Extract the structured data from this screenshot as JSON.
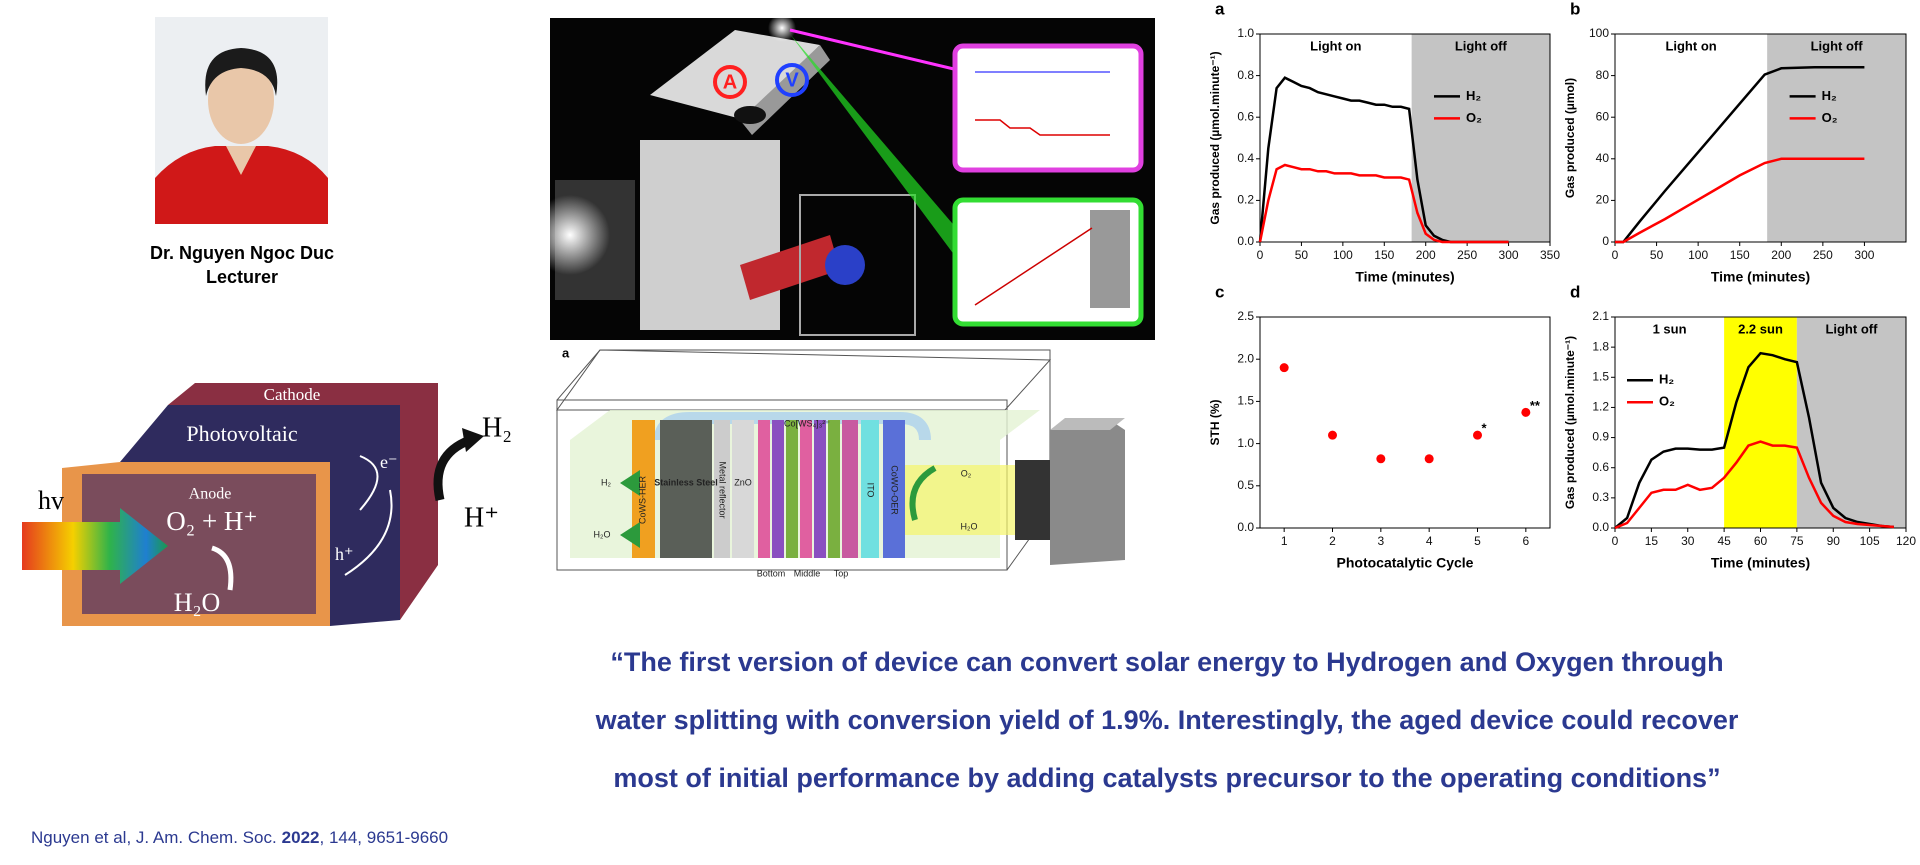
{
  "profile": {
    "name": "Dr. Nguyen Ngoc Duc",
    "role": "Lecturer"
  },
  "cell_diagram": {
    "cathode": "Cathode",
    "photovoltaic": "Photovoltaic",
    "anode": "Anode",
    "anode_products": "O₂ + H⁺",
    "light": "hv",
    "electron": "e⁻",
    "hole": "h⁺",
    "water": "H₂O",
    "hydrogen": "H₂",
    "proton": "H⁺"
  },
  "device_photo": {
    "ammeter": "A",
    "voltmeter": "V"
  },
  "device_schematic": {
    "panel": "a",
    "catalyst": "Co[WS₄]₃²⁻",
    "h2": "H₂",
    "h2o_left": "H₂O",
    "her": "CoWS-HER",
    "steel": "Stainless Steel",
    "reflector": "Metal reflector",
    "zno": "ZnO",
    "ito": "ITO",
    "oer": "CoWO-OER",
    "o2": "O₂",
    "h2o_right": "H₂O",
    "bottom": "Bottom",
    "middle": "Middle",
    "top": "Top"
  },
  "charts": [
    {
      "panel": "a",
      "type": "line",
      "xlabel": "Time (minutes)",
      "ylabel": "Gas produced (µmol.minute⁻¹)",
      "xlim": [
        0,
        350
      ],
      "xticks": [
        0,
        50,
        100,
        150,
        200,
        250,
        300,
        350
      ],
      "ylim": [
        0,
        1
      ],
      "yticks": [
        {
          "value": 0,
          "label": "0.0"
        },
        0.2,
        0.4,
        0.6,
        0.8,
        {
          "value": 1,
          "label": "1.0"
        }
      ],
      "regions": [
        {
          "label": "Light on",
          "start": 0,
          "end": 183,
          "color": "#ffffff"
        },
        {
          "label": "Light off",
          "start": 183,
          "end": 350,
          "color": "#c4c4c4"
        }
      ],
      "legend": "center right",
      "x": [
        0,
        10,
        20,
        30,
        40,
        50,
        60,
        70,
        80,
        90,
        100,
        110,
        120,
        130,
        140,
        150,
        160,
        170,
        180,
        190,
        200,
        210,
        220,
        230,
        240,
        250,
        260,
        270,
        280,
        290,
        300
      ],
      "series": [
        {
          "name": "H₂",
          "color": "#000000",
          "values": [
            0,
            0.45,
            0.74,
            0.79,
            0.77,
            0.75,
            0.74,
            0.72,
            0.71,
            0.7,
            0.69,
            0.68,
            0.68,
            0.67,
            0.66,
            0.66,
            0.65,
            0.65,
            0.64,
            0.3,
            0.08,
            0.03,
            0.01,
            0,
            0,
            0,
            0,
            0,
            0,
            0,
            0
          ]
        },
        {
          "name": "O₂",
          "color": "#ff0000",
          "values": [
            0,
            0.2,
            0.35,
            0.37,
            0.36,
            0.35,
            0.35,
            0.34,
            0.34,
            0.33,
            0.33,
            0.33,
            0.32,
            0.32,
            0.32,
            0.31,
            0.31,
            0.31,
            0.3,
            0.14,
            0.04,
            0.01,
            0,
            0,
            0,
            0,
            0,
            0,
            0,
            0,
            0
          ]
        }
      ]
    },
    {
      "panel": "b",
      "type": "line",
      "xlabel": "Time (minutes)",
      "ylabel": "Gas produced (µmol)",
      "xlim": [
        0,
        350
      ],
      "xticks": [
        0,
        50,
        100,
        150,
        200,
        250,
        300
      ],
      "ylim": [
        0,
        100
      ],
      "yticks": [
        0,
        20,
        40,
        60,
        80,
        100
      ],
      "regions": [
        {
          "label": "Light on",
          "start": 0,
          "end": 183,
          "color": "#ffffff"
        },
        {
          "label": "Light off",
          "start": 183,
          "end": 350,
          "color": "#c4c4c4"
        }
      ],
      "legend": "center right",
      "x": [
        0,
        10,
        30,
        60,
        90,
        120,
        150,
        180,
        200,
        240,
        300
      ],
      "series": [
        {
          "name": "H₂",
          "color": "#000000",
          "values": [
            0,
            0,
            10,
            24.5,
            38.5,
            52.5,
            66.5,
            80.5,
            83.5,
            84,
            84
          ]
        },
        {
          "name": "O₂",
          "color": "#ff0000",
          "values": [
            0,
            0,
            4.5,
            11,
            18,
            25,
            32,
            38,
            40,
            40,
            40
          ]
        }
      ]
    },
    {
      "panel": "c",
      "type": "scatter",
      "xlabel": "Photocatalytic Cycle",
      "ylabel": "STH (%)",
      "xlim": [
        0.5,
        6.5
      ],
      "xticks": [
        1,
        2,
        3,
        4,
        5,
        6
      ],
      "ylim": [
        0,
        2.5
      ],
      "yticks": [
        {
          "value": 0,
          "label": "0.0"
        },
        0.5,
        {
          "value": 1,
          "label": "1.0"
        },
        1.5,
        {
          "value": 2,
          "label": "2.0"
        },
        2.5
      ],
      "color": "#ff0000",
      "x": [
        1,
        2,
        3,
        4,
        5,
        6
      ],
      "values": [
        1.9,
        1.1,
        0.82,
        0.82,
        1.1,
        1.37
      ],
      "point_labels": [
        null,
        null,
        null,
        null,
        "*",
        "**"
      ]
    },
    {
      "panel": "d",
      "type": "line",
      "xlabel": "Time (minutes)",
      "ylabel": "Gas produced (µmol.minute⁻¹)",
      "xlim": [
        0,
        120
      ],
      "xticks": [
        0,
        15,
        30,
        45,
        60,
        75,
        90,
        105,
        120
      ],
      "ylim": [
        0,
        2.1
      ],
      "yticks": [
        {
          "value": 0,
          "label": "0.0"
        },
        0.3,
        0.6,
        0.9,
        1.2,
        1.5,
        1.8,
        2.1
      ],
      "regions": [
        {
          "label": "1 sun",
          "start": 0,
          "end": 45,
          "color": "#ffffff"
        },
        {
          "label": "2.2 sun",
          "start": 45,
          "end": 75,
          "color": "#ffff00"
        },
        {
          "label": "Light off",
          "start": 75,
          "end": 120,
          "color": "#c4c4c4"
        }
      ],
      "legend": "upper left",
      "x": [
        0,
        5,
        10,
        15,
        20,
        25,
        30,
        35,
        40,
        45,
        50,
        55,
        60,
        65,
        70,
        75,
        80,
        85,
        90,
        95,
        100,
        105,
        110,
        115
      ],
      "series": [
        {
          "name": "H₂",
          "color": "#000000",
          "values": [
            0,
            0.1,
            0.45,
            0.68,
            0.76,
            0.79,
            0.79,
            0.78,
            0.78,
            0.8,
            1.25,
            1.6,
            1.74,
            1.72,
            1.68,
            1.65,
            1.1,
            0.45,
            0.2,
            0.1,
            0.06,
            0.04,
            0.02,
            0.01
          ]
        },
        {
          "name": "O₂",
          "color": "#ff0000",
          "values": [
            0,
            0.05,
            0.2,
            0.35,
            0.38,
            0.38,
            0.43,
            0.38,
            0.4,
            0.5,
            0.65,
            0.82,
            0.86,
            0.82,
            0.82,
            0.8,
            0.5,
            0.25,
            0.12,
            0.06,
            0.04,
            0.03,
            0.02,
            0.01
          ]
        }
      ]
    }
  ],
  "quote": [
    "“The first version of device can convert solar energy to Hydrogen and Oxygen through",
    "water splitting with conversion yield of 1.9%. Interestingly, the aged device could recover",
    "most of initial performance by adding catalysts precursor to the operating conditions”"
  ],
  "citation": {
    "source": "Nguyen et al, J. Am. Chem. Soc.",
    "year": "2022",
    "pages": ", 144, 9651-9660"
  }
}
